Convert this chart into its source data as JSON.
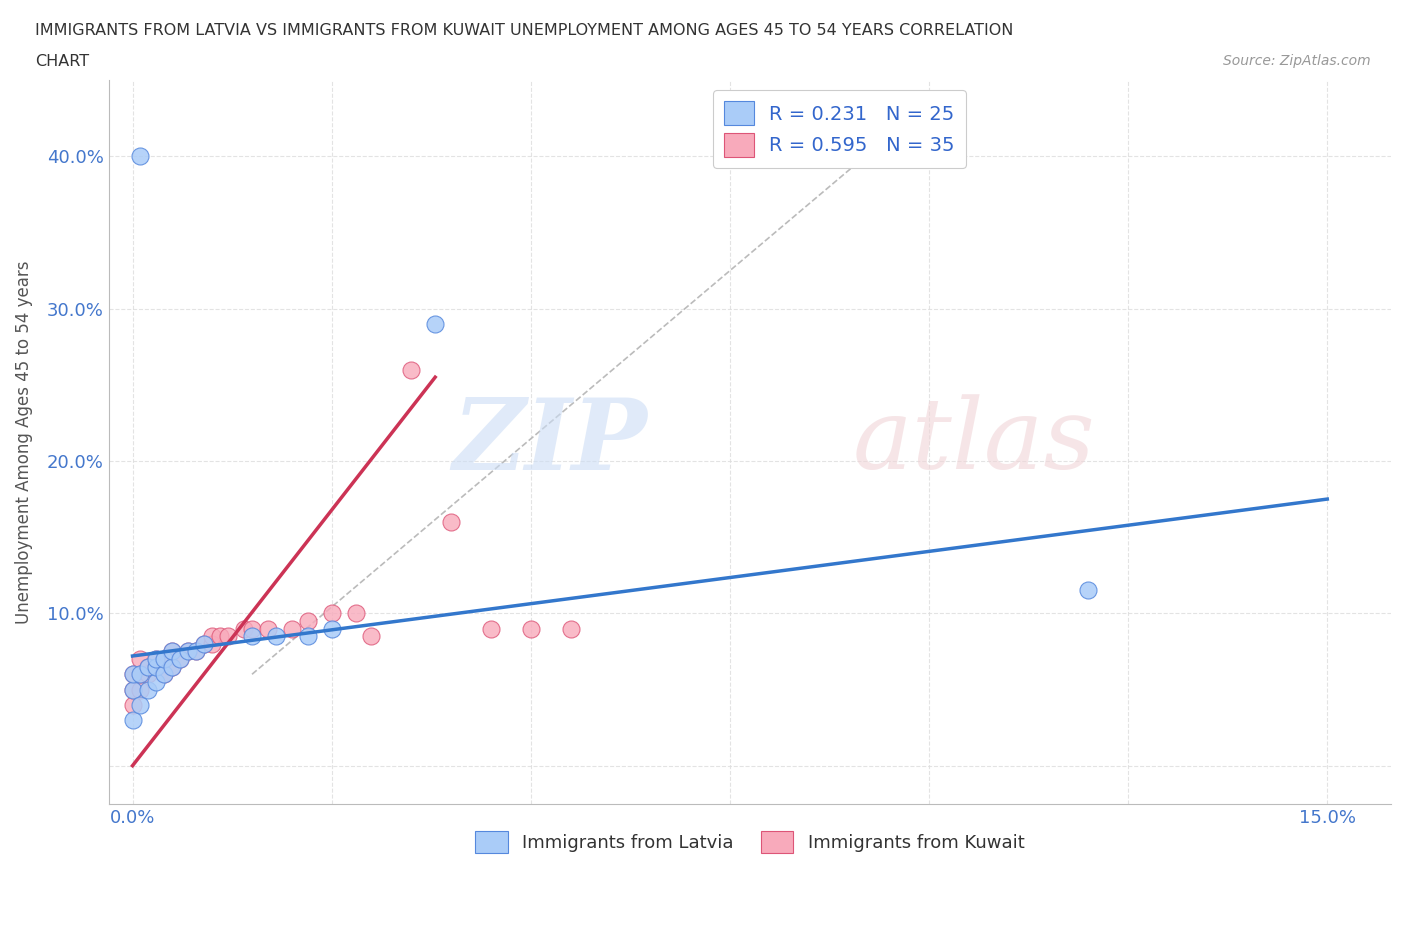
{
  "title_line1": "IMMIGRANTS FROM LATVIA VS IMMIGRANTS FROM KUWAIT UNEMPLOYMENT AMONG AGES 45 TO 54 YEARS CORRELATION",
  "title_line2": "CHART",
  "source_text": "Source: ZipAtlas.com",
  "ylabel": "Unemployment Among Ages 45 to 54 years",
  "xlim": [
    -0.003,
    0.158
  ],
  "ylim": [
    -0.025,
    0.45
  ],
  "xtick_positions": [
    0.0,
    0.025,
    0.05,
    0.075,
    0.1,
    0.125,
    0.15
  ],
  "xtick_labels": [
    "0.0%",
    "",
    "",
    "",
    "",
    "",
    "15.0%"
  ],
  "ytick_positions": [
    0.0,
    0.1,
    0.2,
    0.3,
    0.4
  ],
  "ytick_labels": [
    "",
    "10.0%",
    "20.0%",
    "30.0%",
    "40.0%"
  ],
  "latvia_color": "#aaccf8",
  "kuwait_color": "#f8aabb",
  "latvia_edge": "#5588dd",
  "kuwait_edge": "#dd5577",
  "trendline_latvia_color": "#3377cc",
  "trendline_kuwait_color": "#cc3355",
  "trendline_ref_color": "#bbbbbb",
  "legend_R_latvia": "0.231",
  "legend_N_latvia": "25",
  "legend_R_kuwait": "0.595",
  "legend_N_kuwait": "35",
  "latvia_x": [
    0.001,
    0.0,
    0.0,
    0.0,
    0.001,
    0.001,
    0.002,
    0.002,
    0.003,
    0.003,
    0.003,
    0.004,
    0.004,
    0.005,
    0.005,
    0.006,
    0.007,
    0.008,
    0.009,
    0.015,
    0.018,
    0.022,
    0.025,
    0.12,
    0.038
  ],
  "latvia_y": [
    0.4,
    0.03,
    0.05,
    0.06,
    0.04,
    0.06,
    0.05,
    0.065,
    0.055,
    0.065,
    0.07,
    0.06,
    0.07,
    0.065,
    0.075,
    0.07,
    0.075,
    0.075,
    0.08,
    0.085,
    0.085,
    0.085,
    0.09,
    0.115,
    0.29
  ],
  "kuwait_x": [
    0.0,
    0.0,
    0.0,
    0.001,
    0.001,
    0.001,
    0.002,
    0.002,
    0.003,
    0.003,
    0.004,
    0.004,
    0.005,
    0.005,
    0.006,
    0.007,
    0.008,
    0.009,
    0.01,
    0.01,
    0.011,
    0.012,
    0.014,
    0.015,
    0.017,
    0.02,
    0.022,
    0.025,
    0.028,
    0.03,
    0.035,
    0.04,
    0.045,
    0.05,
    0.055
  ],
  "kuwait_y": [
    0.04,
    0.05,
    0.06,
    0.05,
    0.06,
    0.07,
    0.06,
    0.065,
    0.065,
    0.07,
    0.06,
    0.07,
    0.065,
    0.075,
    0.07,
    0.075,
    0.075,
    0.08,
    0.08,
    0.085,
    0.085,
    0.085,
    0.09,
    0.09,
    0.09,
    0.09,
    0.095,
    0.1,
    0.1,
    0.085,
    0.26,
    0.16,
    0.09,
    0.09,
    0.09
  ]
}
